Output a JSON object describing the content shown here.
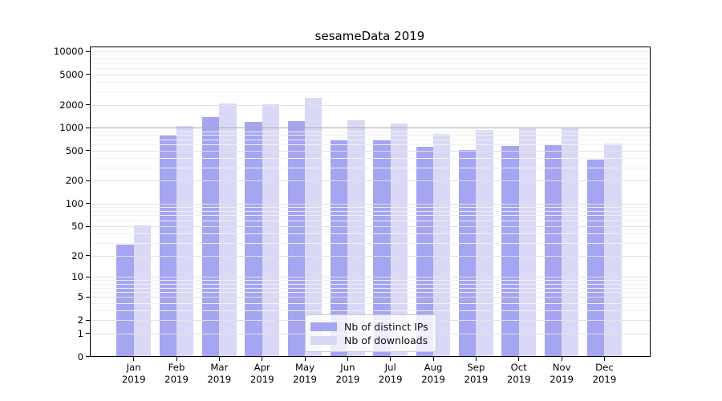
{
  "title": "sesameData 2019",
  "chart_data": {
    "type": "bar",
    "title": "sesameData 2019",
    "categories": [
      "Jan 2019",
      "Feb 2019",
      "Mar 2019",
      "Apr 2019",
      "May 2019",
      "Jun 2019",
      "Jul 2019",
      "Aug 2019",
      "Sep 2019",
      "Oct 2019",
      "Nov 2019",
      "Dec 2019"
    ],
    "months": [
      "Jan",
      "Feb",
      "Mar",
      "Apr",
      "May",
      "Jun",
      "Jul",
      "Aug",
      "Sep",
      "Oct",
      "Nov",
      "Dec"
    ],
    "year": "2019",
    "series": [
      {
        "name": "Nb of distinct IPs",
        "color": "#a5a5f2",
        "values": [
          28,
          790,
          1370,
          1185,
          1215,
          690,
          690,
          555,
          505,
          580,
          590,
          385
        ]
      },
      {
        "name": "Nb of downloads",
        "color": "#d9d9f7",
        "values": [
          51,
          1060,
          2080,
          2040,
          2450,
          1260,
          1125,
          835,
          925,
          990,
          1010,
          615
        ]
      }
    ],
    "yscale": "log1p",
    "yticks": [
      0,
      1,
      2,
      5,
      10,
      20,
      50,
      100,
      200,
      500,
      1000,
      2000,
      5000,
      10000
    ],
    "ylim": [
      0,
      11600
    ],
    "reference_line_y": 1000,
    "grid": true,
    "legend_position": "lower center"
  },
  "style": {
    "background": "#ffffff",
    "axis_color": "#000000",
    "text_color": "#000000",
    "grid_major": "#e2e2e2",
    "grid_minor": "#f1f1f1",
    "reference_line": "#a9a9a9",
    "legend_border": "#cccccc"
  }
}
